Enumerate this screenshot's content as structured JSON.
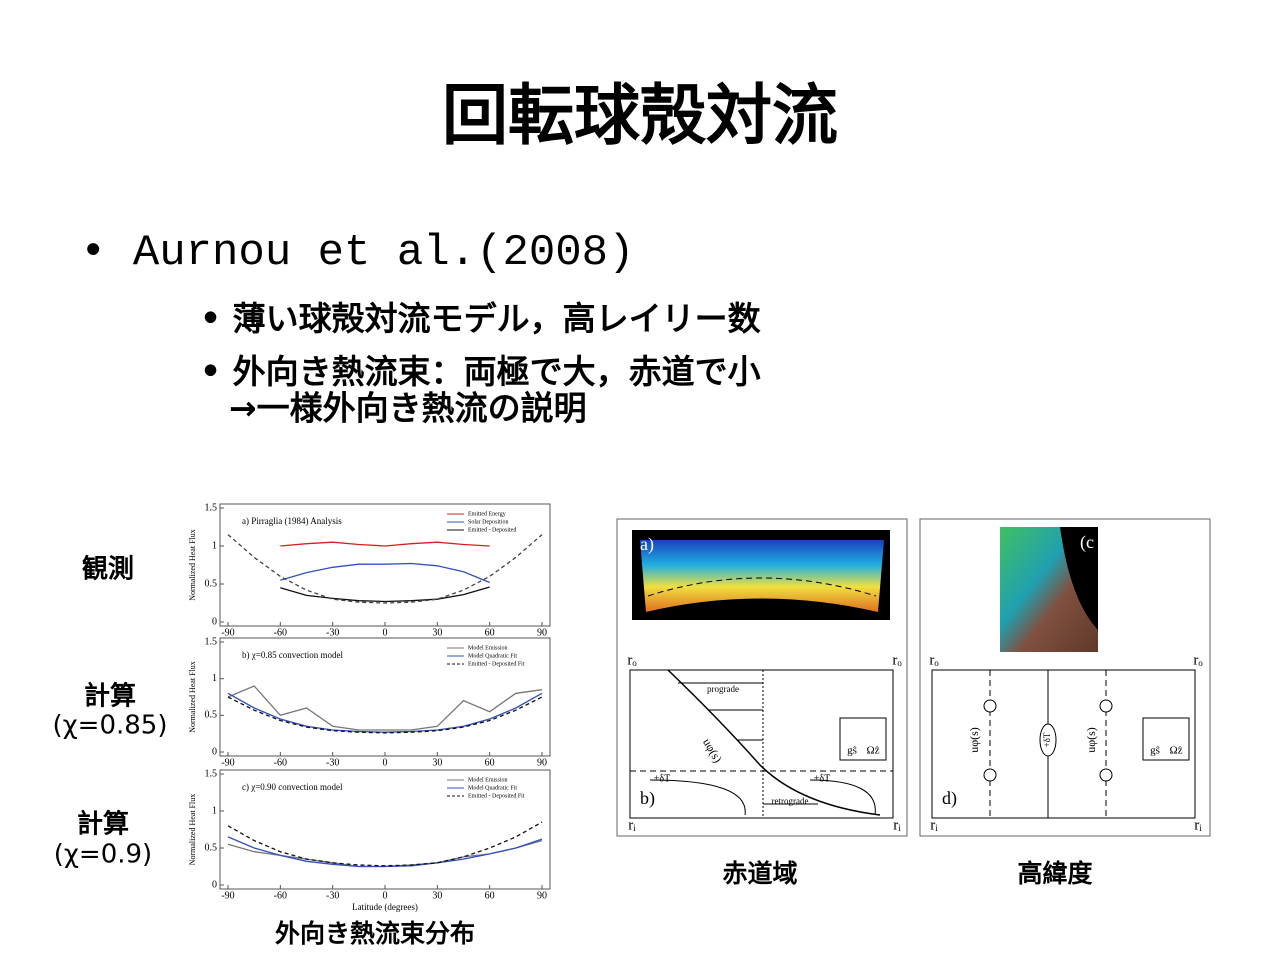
{
  "title": "回転球殻対流",
  "bullet": "Aurnou et al.(2008)",
  "sub_bullets": [
    [
      "薄い球殻対流モデル，高レイリー数"
    ],
    [
      "外向き熱流束：両極で大，赤道で小",
      "→一様外向き熱流の説明"
    ]
  ],
  "left_figure": {
    "labels": [
      [
        "観測"
      ],
      [
        "計算",
        "(χ=0.85)"
      ],
      [
        "計算",
        "(χ=0.9)"
      ]
    ],
    "caption": "外向き熱流束分布"
  },
  "right_figure": {
    "captions": [
      "赤道域",
      "高緯度"
    ],
    "panel_labels": [
      "a)",
      "b)",
      "(c",
      "d)"
    ],
    "arrows": [
      "prograde",
      "retrograde"
    ],
    "r_outer": "rₒ",
    "r_inner": "rᵢ",
    "velocity": "uφ(s)",
    "temperature": "+δT",
    "gravity": "gŝ",
    "rotation": "Ωẑ"
  },
  "chart_data": [
    {
      "type": "line",
      "title": "a) Pirraglia (1984) Analysis",
      "ylabel": "Normalized Heat Flux",
      "x": [
        -90,
        -75,
        -60,
        -45,
        -30,
        -15,
        0,
        15,
        30,
        45,
        60,
        75,
        90
      ],
      "xlim": [
        -90,
        90
      ],
      "ylim": [
        0,
        1.5
      ],
      "xticks": [
        -90,
        -60,
        -30,
        0,
        30,
        60,
        90
      ],
      "yticks": [
        0,
        0.5,
        1,
        1.5
      ],
      "series": [
        {
          "name": "Emitted Energy",
          "color": "#d62020",
          "values": [
            null,
            null,
            1.0,
            1.03,
            1.05,
            1.02,
            1.0,
            1.03,
            1.05,
            1.02,
            1.0,
            null,
            null
          ]
        },
        {
          "name": "Solar Deposition",
          "color": "#3050c0",
          "values": [
            null,
            null,
            0.55,
            0.65,
            0.72,
            0.76,
            0.76,
            0.77,
            0.74,
            0.66,
            0.52,
            null,
            null
          ]
        },
        {
          "name": "Emitted - Deposited",
          "color": "#111111",
          "values": [
            null,
            null,
            0.45,
            0.35,
            0.31,
            0.28,
            0.27,
            0.28,
            0.3,
            0.36,
            0.46,
            null,
            null
          ]
        },
        {
          "color": "#444444",
          "dash": true,
          "values": [
            1.15,
            0.85,
            0.6,
            0.42,
            0.3,
            0.26,
            0.25,
            0.26,
            0.3,
            0.42,
            0.6,
            0.85,
            1.15
          ]
        }
      ]
    },
    {
      "type": "line",
      "title": "b) χ=0.85 convection model",
      "ylabel": "Normalized Heat Flux",
      "x": [
        -90,
        -75,
        -60,
        -45,
        -30,
        -15,
        0,
        15,
        30,
        45,
        60,
        75,
        90
      ],
      "xlim": [
        -90,
        90
      ],
      "ylim": [
        0,
        1.5
      ],
      "xticks": [
        -90,
        -60,
        -30,
        0,
        30,
        60,
        90
      ],
      "yticks": [
        0,
        0.5,
        1,
        1.5
      ],
      "series": [
        {
          "name": "Model Emission",
          "color": "#777777",
          "values": [
            0.75,
            0.9,
            0.5,
            0.6,
            0.35,
            0.3,
            0.3,
            0.3,
            0.35,
            0.7,
            0.55,
            0.8,
            0.85
          ]
        },
        {
          "name": "Model Quadratic Fit",
          "color": "#3050c0",
          "values": [
            0.8,
            0.6,
            0.45,
            0.35,
            0.3,
            0.28,
            0.27,
            0.28,
            0.3,
            0.35,
            0.45,
            0.6,
            0.8
          ]
        },
        {
          "name": "Emitted - Deposited Fit",
          "color": "#111111",
          "dash": true,
          "values": [
            0.75,
            0.57,
            0.43,
            0.34,
            0.29,
            0.27,
            0.26,
            0.27,
            0.29,
            0.34,
            0.43,
            0.57,
            0.75
          ]
        }
      ]
    },
    {
      "type": "line",
      "title": "c) χ=0.90 convection model",
      "ylabel": "Normalized Heat Flux",
      "xlabel": "Latitude (degrees)",
      "x": [
        -90,
        -75,
        -60,
        -45,
        -30,
        -15,
        0,
        15,
        30,
        45,
        60,
        75,
        90
      ],
      "xlim": [
        -90,
        90
      ],
      "ylim": [
        0,
        1.5
      ],
      "xticks": [
        -90,
        -60,
        -30,
        0,
        30,
        60,
        90
      ],
      "yticks": [
        0,
        0.5,
        1,
        1.5
      ],
      "series": [
        {
          "name": "Model Emission",
          "color": "#777777",
          "values": [
            0.55,
            0.45,
            0.4,
            0.35,
            0.3,
            0.25,
            0.25,
            0.27,
            0.3,
            0.38,
            0.42,
            0.5,
            0.6
          ]
        },
        {
          "name": "Model Quadratic Fit",
          "color": "#3050c0",
          "values": [
            0.65,
            0.5,
            0.4,
            0.32,
            0.28,
            0.25,
            0.25,
            0.26,
            0.3,
            0.35,
            0.42,
            0.5,
            0.62
          ]
        },
        {
          "name": "Emitted - Deposited Fit",
          "color": "#111111",
          "dash": true,
          "values": [
            0.8,
            0.6,
            0.45,
            0.35,
            0.3,
            0.27,
            0.26,
            0.27,
            0.3,
            0.38,
            0.5,
            0.65,
            0.85
          ]
        }
      ]
    }
  ]
}
